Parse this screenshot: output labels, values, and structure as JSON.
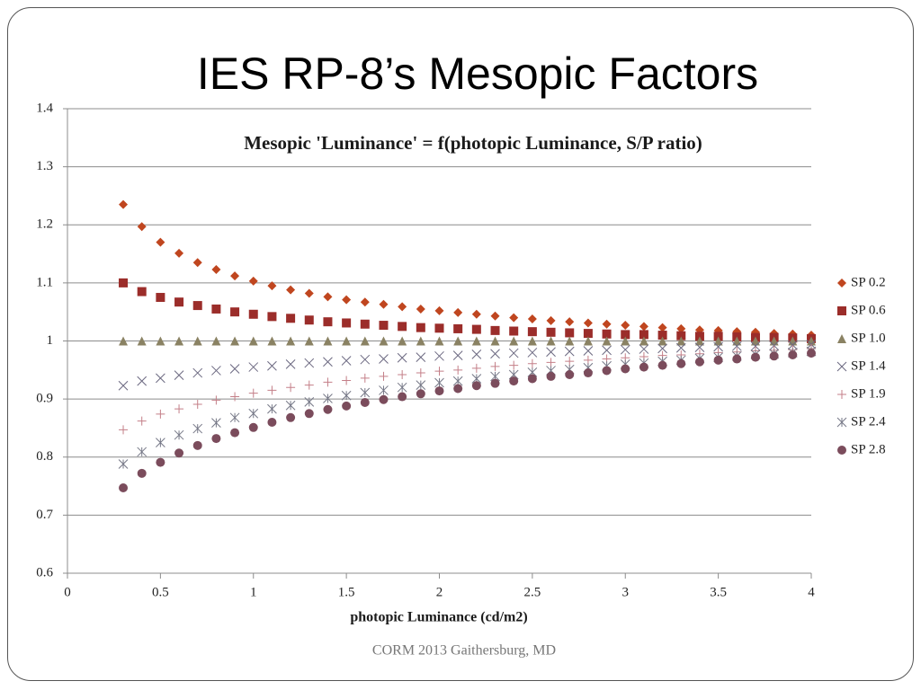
{
  "slide_title": "IES RP-8’s Mesopic Factors",
  "footer": "CORM 2013  Gaithersburg, MD",
  "chart_data": {
    "type": "scatter",
    "title": "Mesopic  'Luminance' = f(photopic Luminance, S/P ratio)",
    "x_label": "photopic Luminance (cd/m2)",
    "x": [
      0.3,
      0.4,
      0.5,
      0.6,
      0.7,
      0.8,
      0.9,
      1.0,
      1.1,
      1.2,
      1.3,
      1.4,
      1.5,
      1.6,
      1.7,
      1.8,
      1.9,
      2.0,
      2.1,
      2.2,
      2.3,
      2.4,
      2.5,
      2.6,
      2.7,
      2.8,
      2.9,
      3.0,
      3.1,
      3.2,
      3.3,
      3.4,
      3.5,
      3.6,
      3.7,
      3.8,
      3.9,
      4.0
    ],
    "xlim": [
      0,
      4
    ],
    "xticks": [
      0,
      0.5,
      1,
      1.5,
      2,
      2.5,
      3,
      3.5,
      4
    ],
    "ylim": [
      0.6,
      1.4
    ],
    "yticks": [
      0.6,
      0.7,
      0.8,
      0.9,
      1,
      1.1,
      1.2,
      1.3,
      1.4
    ],
    "grid": true,
    "legend": "right",
    "series": [
      {
        "name": "SP 0.2",
        "color": "#c0461f",
        "marker": "diamond",
        "values": [
          1.235,
          1.197,
          1.17,
          1.151,
          1.135,
          1.123,
          1.112,
          1.103,
          1.095,
          1.088,
          1.082,
          1.076,
          1.071,
          1.067,
          1.063,
          1.059,
          1.055,
          1.052,
          1.049,
          1.046,
          1.043,
          1.04,
          1.038,
          1.035,
          1.033,
          1.031,
          1.029,
          1.027,
          1.025,
          1.023,
          1.021,
          1.019,
          1.018,
          1.016,
          1.015,
          1.013,
          1.012,
          1.01
        ]
      },
      {
        "name": "SP 0.6",
        "color": "#9b2d2a",
        "marker": "square",
        "values": [
          1.1,
          1.085,
          1.075,
          1.067,
          1.061,
          1.055,
          1.05,
          1.046,
          1.042,
          1.039,
          1.036,
          1.033,
          1.031,
          1.029,
          1.027,
          1.025,
          1.023,
          1.022,
          1.021,
          1.02,
          1.018,
          1.017,
          1.016,
          1.015,
          1.014,
          1.013,
          1.012,
          1.011,
          1.011,
          1.01,
          1.009,
          1.008,
          1.008,
          1.007,
          1.006,
          1.006,
          1.005,
          1.004
        ]
      },
      {
        "name": "SP 1.0",
        "color": "#8a8263",
        "marker": "triangle",
        "values": [
          1,
          1,
          1,
          1,
          1,
          1,
          1,
          1,
          1,
          1,
          1,
          1,
          1,
          1,
          1,
          1,
          1,
          1,
          1,
          1,
          1,
          1,
          1,
          1,
          1,
          1,
          1,
          1,
          1,
          1,
          1,
          1,
          1,
          1,
          1,
          1,
          1,
          1
        ]
      },
      {
        "name": "SP 1.4",
        "color": "#6b6880",
        "marker": "x",
        "values": [
          0.923,
          0.931,
          0.936,
          0.941,
          0.945,
          0.949,
          0.952,
          0.955,
          0.957,
          0.96,
          0.962,
          0.964,
          0.966,
          0.968,
          0.969,
          0.971,
          0.972,
          0.974,
          0.975,
          0.977,
          0.978,
          0.979,
          0.98,
          0.981,
          0.982,
          0.983,
          0.984,
          0.985,
          0.986,
          0.987,
          0.988,
          0.989,
          0.99,
          0.991,
          0.991,
          0.992,
          0.993,
          0.994
        ]
      },
      {
        "name": "SP 1.9",
        "color": "#c47f88",
        "marker": "plus",
        "values": [
          0.847,
          0.862,
          0.874,
          0.883,
          0.891,
          0.898,
          0.904,
          0.91,
          0.915,
          0.92,
          0.924,
          0.929,
          0.932,
          0.936,
          0.939,
          0.942,
          0.945,
          0.948,
          0.95,
          0.953,
          0.956,
          0.958,
          0.961,
          0.963,
          0.965,
          0.967,
          0.969,
          0.971,
          0.973,
          0.975,
          0.976,
          0.978,
          0.98,
          0.981,
          0.983,
          0.984,
          0.985,
          0.987
        ]
      },
      {
        "name": "SP 2.4",
        "color": "#767887",
        "marker": "star",
        "values": [
          0.788,
          0.809,
          0.825,
          0.838,
          0.849,
          0.859,
          0.868,
          0.875,
          0.883,
          0.889,
          0.895,
          0.901,
          0.906,
          0.911,
          0.915,
          0.92,
          0.924,
          0.928,
          0.931,
          0.935,
          0.939,
          0.942,
          0.946,
          0.949,
          0.951,
          0.954,
          0.957,
          0.96,
          0.962,
          0.965,
          0.967,
          0.97,
          0.972,
          0.974,
          0.977,
          0.978,
          0.98,
          0.982
        ]
      },
      {
        "name": "SP 2.8",
        "color": "#7b4c5c",
        "marker": "circle",
        "values": [
          0.747,
          0.772,
          0.791,
          0.807,
          0.82,
          0.832,
          0.842,
          0.851,
          0.86,
          0.868,
          0.875,
          0.882,
          0.888,
          0.894,
          0.899,
          0.904,
          0.909,
          0.914,
          0.918,
          0.923,
          0.927,
          0.931,
          0.935,
          0.939,
          0.942,
          0.945,
          0.949,
          0.952,
          0.955,
          0.958,
          0.961,
          0.964,
          0.967,
          0.969,
          0.972,
          0.974,
          0.976,
          0.979
        ]
      }
    ]
  }
}
